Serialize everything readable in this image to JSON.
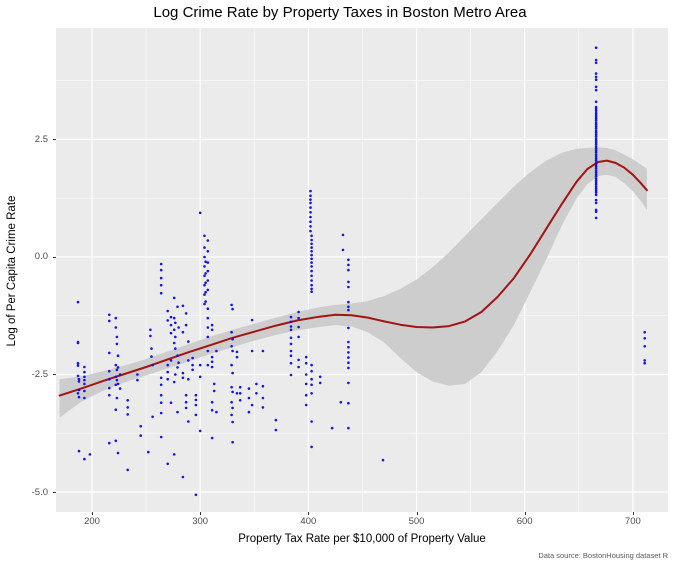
{
  "chart": {
    "title": "Log Crime Rate by Property Taxes in Boston Metro Area",
    "xlabel": "Property Tax Rate per $10,000 of Property Value",
    "ylabel": "Log of Per Capita Crime Rate",
    "caption": "Data source: BostonHousing dataset R"
  },
  "style": {
    "panel_bg": "#ebebeb",
    "grid_major": "#ffffff",
    "grid_minor": "#ffffff",
    "point_color": "#1414e0",
    "line_color": "#a51212",
    "band_color": "#cdcdcd",
    "tick_text": "#4d4d4d",
    "caption_text": "#595959"
  },
  "chart_data": {
    "type": "scatter",
    "title": "Log Crime Rate by Property Taxes in Boston Metro Area",
    "xlabel": "Property Tax Rate per $10,000 of Property Value",
    "ylabel": "Log of Per Capita Crime Rate",
    "caption": "Data source: BostonHousing dataset R",
    "grid": true,
    "legend": "none",
    "xlim": [
      166.7,
      732.5
    ],
    "ylim": [
      -5.425,
      4.87
    ],
    "x_ticks": [
      {
        "v": 200,
        "label": "200"
      },
      {
        "v": 300,
        "label": "300"
      },
      {
        "v": 400,
        "label": "400"
      },
      {
        "v": 500,
        "label": "500"
      },
      {
        "v": 600,
        "label": "600"
      },
      {
        "v": 700,
        "label": "700"
      }
    ],
    "y_ticks": [
      {
        "v": 2.5,
        "label": "2.5"
      },
      {
        "v": 0.0,
        "label": "0.0"
      },
      {
        "v": -2.5,
        "label": "-2.5"
      },
      {
        "v": -5.0,
        "label": "-5.0"
      }
    ],
    "x_minor": [
      250,
      350,
      450,
      550,
      650
    ],
    "y_minor": [
      3.75,
      1.25,
      -1.25,
      -3.75
    ],
    "points_by_tax": [
      {
        "tax": 187,
        "log_crim": [
          -0.96,
          -1.81,
          -1.83,
          -2.26,
          -2.31,
          -2.53,
          -2.9
        ]
      },
      {
        "tax": 188,
        "log_crim": [
          -2.6,
          -2.65,
          -2.83,
          -2.98,
          -4.13
        ]
      },
      {
        "tax": 193,
        "log_crim": [
          -2.34,
          -2.45,
          -2.55,
          -2.62,
          -2.7,
          -2.85,
          -3.0,
          -4.3
        ]
      },
      {
        "tax": 198,
        "log_crim": [
          -4.2
        ]
      },
      {
        "tax": 216,
        "log_crim": [
          -1.23,
          -1.36,
          -2.04,
          -2.43,
          -2.6,
          -2.79,
          -2.94,
          -3.96
        ]
      },
      {
        "tax": 222,
        "log_crim": [
          -1.3,
          -1.5,
          -2.3,
          -2.55,
          -2.72,
          -3.25,
          -3.91
        ]
      },
      {
        "tax": 223,
        "log_crim": [
          -1.7,
          -1.85,
          -2.4,
          -2.62,
          -3.0
        ]
      },
      {
        "tax": 224,
        "log_crim": [
          -2.1,
          -2.35,
          -2.7,
          -4.17
        ]
      },
      {
        "tax": 226,
        "log_crim": [
          -2.5,
          -2.8
        ]
      },
      {
        "tax": 233,
        "log_crim": [
          -3.05,
          -3.2,
          -3.35,
          -4.53
        ]
      },
      {
        "tax": 242,
        "log_crim": [
          -2.5,
          -2.62
        ]
      },
      {
        "tax": 245,
        "log_crim": [
          -3.6,
          -3.8
        ]
      },
      {
        "tax": 252,
        "log_crim": [
          -4.15
        ]
      },
      {
        "tax": 254,
        "log_crim": [
          -1.55,
          -1.68
        ]
      },
      {
        "tax": 255,
        "log_crim": [
          -1.95,
          -2.12
        ]
      },
      {
        "tax": 256,
        "log_crim": [
          -2.3,
          -3.4
        ]
      },
      {
        "tax": 264,
        "log_crim": [
          -0.15,
          -0.28,
          -0.45,
          -0.6,
          -0.77,
          -2.57,
          -2.72,
          -2.94,
          -3.1,
          -3.32,
          -3.83
        ]
      },
      {
        "tax": 270,
        "log_crim": [
          -1.15,
          -1.35,
          -2.3,
          -2.45,
          -2.6,
          -4.4
        ]
      },
      {
        "tax": 273,
        "log_crim": [
          -1.28,
          -1.45,
          -1.62,
          -2.2,
          -3.1
        ]
      },
      {
        "tax": 276,
        "log_crim": [
          -0.87,
          -1.3,
          -1.55,
          -1.83,
          -2.66,
          -4.2
        ]
      },
      {
        "tax": 277,
        "log_crim": [
          -1.4,
          -1.7,
          -1.95,
          -2.5
        ]
      },
      {
        "tax": 279,
        "log_crim": [
          -1.06,
          -2.1,
          -2.35,
          -3.3
        ]
      },
      {
        "tax": 280,
        "log_crim": [
          -1.5,
          -2.25
        ]
      },
      {
        "tax": 284,
        "log_crim": [
          -1.04,
          -1.6,
          -2.47,
          -2.57,
          -4.68
        ]
      },
      {
        "tax": 287,
        "log_crim": [
          -1.2,
          -1.45,
          -2.94,
          -3.09,
          -3.21
        ]
      },
      {
        "tax": 289,
        "log_crim": [
          -1.8,
          -2.2,
          -2.6,
          -3.5
        ]
      },
      {
        "tax": 293,
        "log_crim": [
          -2.15,
          -2.3,
          -2.4
        ]
      },
      {
        "tax": 296,
        "log_crim": [
          -2.94,
          -3.04,
          -3.15,
          -3.36,
          -5.06
        ]
      },
      {
        "tax": 300,
        "log_crim": [
          0.94,
          -2.3,
          -2.55,
          -3.7
        ]
      },
      {
        "tax": 304,
        "log_crim": [
          0.45,
          0.2,
          0.0,
          -0.2,
          -0.4,
          -0.6,
          -0.8,
          -1.0
        ]
      },
      {
        "tax": 305,
        "log_crim": [
          -0.1,
          -0.35,
          -0.55,
          -0.75,
          -0.95
        ]
      },
      {
        "tax": 307,
        "log_crim": [
          0.35,
          0.12,
          -0.12,
          -0.3,
          -0.5,
          -0.7,
          -1.1,
          -1.3,
          -1.5,
          -1.7,
          -2.0,
          -2.3
        ]
      },
      {
        "tax": 311,
        "log_crim": [
          -1.45,
          -1.55,
          -2.13,
          -2.23,
          -2.34,
          -3.09,
          -3.26,
          -3.85
        ]
      },
      {
        "tax": 313,
        "log_crim": [
          -2.7,
          -2.85
        ]
      },
      {
        "tax": 315,
        "log_crim": [
          -2.0,
          -3.3
        ]
      },
      {
        "tax": 329,
        "log_crim": [
          -1.02,
          -1.6,
          -1.9,
          -2.3,
          -2.77,
          -3.09,
          -3.36
        ]
      },
      {
        "tax": 330,
        "log_crim": [
          -1.11,
          -1.75,
          -2.0,
          -2.47,
          -2.87,
          -3.21,
          -3.51,
          -3.94
        ]
      },
      {
        "tax": 334,
        "log_crim": [
          -2.02,
          -2.13,
          -2.9
        ]
      },
      {
        "tax": 337,
        "log_crim": [
          -2.77,
          -2.9,
          -3.05
        ]
      },
      {
        "tax": 345,
        "log_crim": [
          -2.8,
          -3.0,
          -3.3
        ]
      },
      {
        "tax": 348,
        "log_crim": [
          -1.34,
          -2.0,
          -3.15
        ]
      },
      {
        "tax": 352,
        "log_crim": [
          -2.7,
          -2.9
        ]
      },
      {
        "tax": 358,
        "log_crim": [
          -2.0,
          -2.75,
          -3.0,
          -3.2
        ]
      },
      {
        "tax": 370,
        "log_crim": [
          -3.47,
          -3.68
        ]
      },
      {
        "tax": 384,
        "log_crim": [
          -1.28,
          -1.38,
          -1.48,
          -1.55,
          -1.72,
          -1.85,
          -2.0,
          -2.1,
          -2.26,
          -2.51
        ]
      },
      {
        "tax": 391,
        "log_crim": [
          -1.17,
          -1.3,
          -1.49,
          -1.7,
          -2.19,
          -2.34
        ]
      },
      {
        "tax": 398,
        "log_crim": [
          -2.13,
          -2.26,
          -2.5,
          -2.7,
          -2.94,
          -3.15
        ]
      },
      {
        "tax": 402,
        "log_crim": [
          1.4,
          1.3,
          1.22,
          1.15,
          1.05,
          0.95,
          0.85,
          0.75,
          0.65,
          0.55
        ]
      },
      {
        "tax": 403,
        "log_crim": [
          0.45,
          0.36,
          0.28,
          0.2,
          0.12,
          0.04,
          -0.04,
          -0.12,
          -0.2,
          -0.3,
          -0.4,
          -0.5,
          -0.6,
          -0.68,
          -0.74,
          -2.3,
          -2.43,
          -2.6,
          -2.72,
          -2.9,
          -3.5,
          -4.04
        ]
      },
      {
        "tax": 411,
        "log_crim": [
          -2.55,
          -2.68
        ]
      },
      {
        "tax": 422,
        "log_crim": [
          -3.64
        ]
      },
      {
        "tax": 430,
        "log_crim": [
          -3.09
        ]
      },
      {
        "tax": 432,
        "log_crim": [
          0.47,
          0.15
        ]
      },
      {
        "tax": 437,
        "log_crim": [
          -0.06,
          -0.17,
          -0.28,
          -0.53,
          -0.64,
          -0.96,
          -1.06,
          -1.13,
          -1.51,
          -1.81,
          -1.92,
          -2.03,
          -2.14,
          -2.25,
          -2.36,
          -2.68,
          -3.11,
          -3.64
        ]
      },
      {
        "tax": 469,
        "log_crim": [
          -4.32
        ]
      },
      {
        "tax": 666,
        "log_crim": [
          4.45,
          4.19,
          4.13,
          3.9,
          3.83,
          3.77,
          3.62,
          3.55,
          3.3,
          3.19,
          3.15,
          3.11,
          3.06,
          3.02,
          2.98,
          2.94,
          2.9,
          2.85,
          2.81,
          2.77,
          2.73,
          2.68,
          2.64,
          2.6,
          2.56,
          2.51,
          2.47,
          2.43,
          2.39,
          2.34,
          2.3,
          2.26,
          2.22,
          2.17,
          2.13,
          2.09,
          2.05,
          2.0,
          1.96,
          1.92,
          1.88,
          1.83,
          1.79,
          1.75,
          1.71,
          1.66,
          1.62,
          1.58,
          1.54,
          1.49,
          1.45,
          1.41,
          1.37,
          1.32,
          1.21,
          1.15,
          1.0,
          0.96,
          0.83
        ]
      },
      {
        "tax": 711,
        "log_crim": [
          -1.6,
          -1.73,
          -1.9,
          -2.2,
          -2.26
        ]
      }
    ],
    "smooth_line": [
      [
        170,
        -2.95
      ],
      [
        190,
        -2.8
      ],
      [
        210,
        -2.64
      ],
      [
        230,
        -2.49
      ],
      [
        250,
        -2.34
      ],
      [
        270,
        -2.18
      ],
      [
        290,
        -2.02
      ],
      [
        310,
        -1.87
      ],
      [
        330,
        -1.72
      ],
      [
        350,
        -1.59
      ],
      [
        370,
        -1.46
      ],
      [
        390,
        -1.35
      ],
      [
        410,
        -1.27
      ],
      [
        425,
        -1.23
      ],
      [
        440,
        -1.24
      ],
      [
        455,
        -1.29
      ],
      [
        470,
        -1.37
      ],
      [
        485,
        -1.44
      ],
      [
        500,
        -1.49
      ],
      [
        515,
        -1.5
      ],
      [
        530,
        -1.47
      ],
      [
        545,
        -1.37
      ],
      [
        560,
        -1.17
      ],
      [
        575,
        -0.85
      ],
      [
        590,
        -0.45
      ],
      [
        605,
        0.05
      ],
      [
        620,
        0.6
      ],
      [
        635,
        1.15
      ],
      [
        648,
        1.6
      ],
      [
        658,
        1.87
      ],
      [
        668,
        2.02
      ],
      [
        676,
        2.05
      ],
      [
        684,
        2.0
      ],
      [
        692,
        1.9
      ],
      [
        700,
        1.75
      ],
      [
        707,
        1.58
      ],
      [
        713,
        1.42
      ]
    ],
    "confidence_band": [
      [
        170,
        -3.42,
        -2.6
      ],
      [
        190,
        -3.08,
        -2.54
      ],
      [
        210,
        -2.85,
        -2.43
      ],
      [
        230,
        -2.67,
        -2.31
      ],
      [
        250,
        -2.52,
        -2.17
      ],
      [
        270,
        -2.37,
        -2.01
      ],
      [
        290,
        -2.22,
        -1.85
      ],
      [
        310,
        -2.06,
        -1.69
      ],
      [
        330,
        -1.92,
        -1.55
      ],
      [
        350,
        -1.78,
        -1.42
      ],
      [
        370,
        -1.66,
        -1.29
      ],
      [
        390,
        -1.56,
        -1.17
      ],
      [
        410,
        -1.49,
        -1.07
      ],
      [
        425,
        -1.45,
        -1.02
      ],
      [
        440,
        -1.48,
        -0.99
      ],
      [
        455,
        -1.6,
        -0.94
      ],
      [
        470,
        -1.82,
        -0.83
      ],
      [
        485,
        -2.15,
        -0.68
      ],
      [
        500,
        -2.45,
        -0.48
      ],
      [
        515,
        -2.65,
        -0.22
      ],
      [
        530,
        -2.74,
        0.1
      ],
      [
        545,
        -2.7,
        0.45
      ],
      [
        560,
        -2.45,
        0.8
      ],
      [
        575,
        -2.0,
        1.15
      ],
      [
        590,
        -1.45,
        1.5
      ],
      [
        605,
        -0.75,
        1.8
      ],
      [
        620,
        -0.05,
        2.05
      ],
      [
        635,
        0.7,
        2.22
      ],
      [
        648,
        1.25,
        2.3
      ],
      [
        658,
        1.55,
        2.32
      ],
      [
        668,
        1.72,
        2.33
      ],
      [
        676,
        1.75,
        2.32
      ],
      [
        684,
        1.7,
        2.27
      ],
      [
        692,
        1.57,
        2.18
      ],
      [
        700,
        1.4,
        2.08
      ],
      [
        707,
        1.2,
        1.97
      ],
      [
        713,
        1.0,
        1.88
      ]
    ]
  }
}
